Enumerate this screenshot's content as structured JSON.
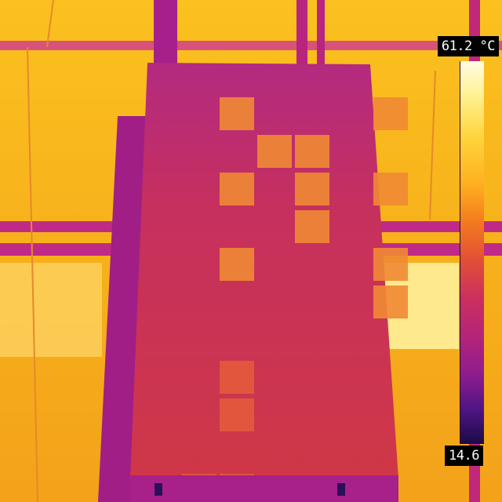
{
  "thermal_scale": {
    "max_label": "61.2 °C",
    "min_label": "14.6",
    "colors": {
      "hot": "#fffbe6",
      "warm": "#f7b31c",
      "mid": "#e2383a",
      "cool": "#a8208a",
      "cold": "#1a0b45"
    }
  },
  "scene": {
    "subject": "solar-panel-thermal-image",
    "panel_cell_grid": {
      "columns": 6,
      "rows": 11
    },
    "hot_cells": [
      [
        0,
        1
      ],
      [
        0,
        5
      ],
      [
        1,
        2
      ],
      [
        1,
        3
      ],
      [
        2,
        1
      ],
      [
        2,
        3
      ],
      [
        2,
        5
      ],
      [
        3,
        3
      ],
      [
        4,
        1
      ],
      [
        4,
        5
      ],
      [
        5,
        5
      ],
      [
        7,
        1
      ],
      [
        8,
        1
      ],
      [
        10,
        0
      ],
      [
        10,
        1
      ]
    ]
  }
}
